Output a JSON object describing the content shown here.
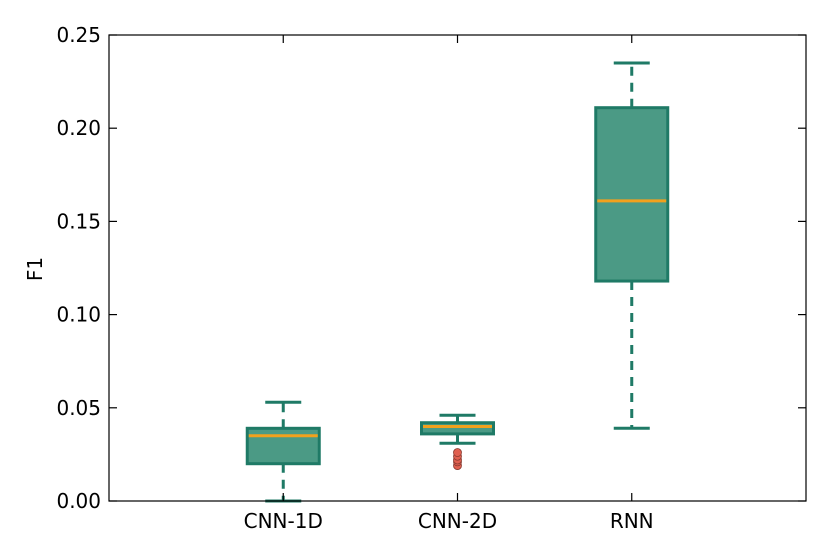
{
  "chart_data": {
    "type": "box",
    "title": "",
    "xlabel": "",
    "ylabel": "F1",
    "ylim": [
      0,
      0.25
    ],
    "yticks": [
      {
        "value": 0.0,
        "label": "0.00"
      },
      {
        "value": 0.05,
        "label": "0.05"
      },
      {
        "value": 0.1,
        "label": "0.10"
      },
      {
        "value": 0.15,
        "label": "0.15"
      },
      {
        "value": 0.2,
        "label": "0.20"
      },
      {
        "value": 0.25,
        "label": "0.25"
      }
    ],
    "grid": false,
    "categories": [
      "CNN-1D",
      "CNN-2D",
      "RNN"
    ],
    "boxes": [
      {
        "label": "CNN-1D",
        "whisker_low": 0.0,
        "q1": 0.02,
        "median": 0.035,
        "q3": 0.039,
        "whisker_high": 0.053,
        "outliers": []
      },
      {
        "label": "CNN-2D",
        "whisker_low": 0.031,
        "q1": 0.036,
        "median": 0.04,
        "q3": 0.042,
        "whisker_high": 0.046,
        "outliers": [
          0.019,
          0.021,
          0.022,
          0.024,
          0.026
        ]
      },
      {
        "label": "RNN",
        "whisker_low": 0.039,
        "q1": 0.118,
        "median": 0.161,
        "q3": 0.211,
        "whisker_high": 0.235,
        "outliers": []
      }
    ],
    "colors": {
      "box_fill": "#4b9a85",
      "box_edge": "#1f7a66",
      "median": "#f2a11d",
      "whisker": "#1f7a66",
      "outlier_fill": "#e06050",
      "outlier_edge": "#8a3a30",
      "axis": "#000000"
    }
  }
}
